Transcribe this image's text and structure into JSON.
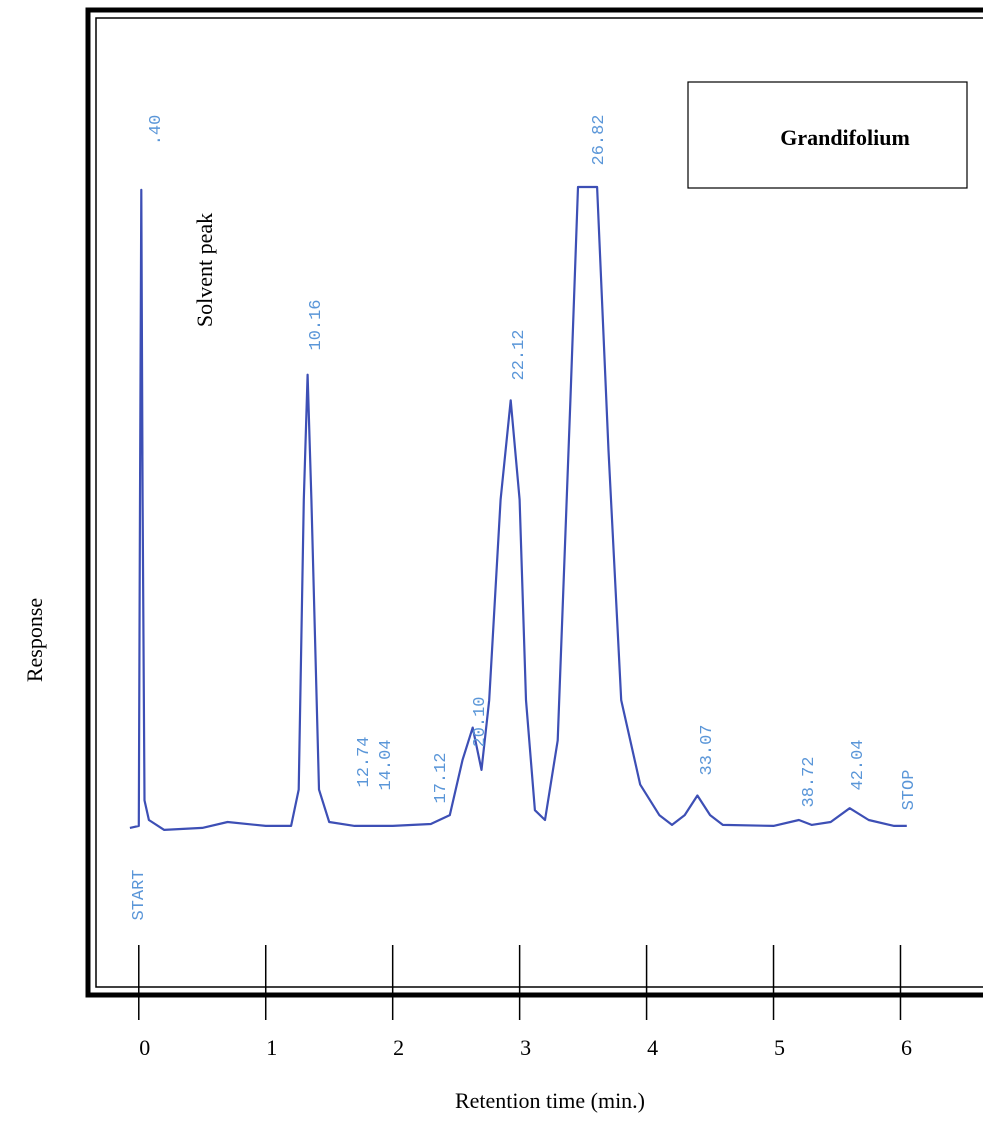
{
  "chart_data": {
    "type": "line",
    "title": "Grandifolium",
    "annotation": "Solvent peak",
    "xlabel": "Retention time (min.)",
    "ylabel": "Response",
    "peak_labels": [
      "START",
      ".40",
      "10.16",
      "12.74",
      "14.04",
      "17.12",
      "20.10",
      "22.12",
      "26.82",
      "33.07",
      "38.72",
      "42.04",
      "STOP"
    ],
    "xlim": [
      -0.4,
      6.65
    ],
    "xticks": [
      0,
      1,
      2,
      3,
      4,
      5,
      6
    ],
    "ylim": [
      0,
      100
    ],
    "x": [
      -0.07,
      0.0,
      0.01,
      0.02,
      0.03,
      0.045,
      0.08,
      0.2,
      0.5,
      0.7,
      1.0,
      1.2,
      1.26,
      1.3,
      1.33,
      1.36,
      1.42,
      1.5,
      1.7,
      2.0,
      2.3,
      2.45,
      2.55,
      2.63,
      2.7,
      2.76,
      2.85,
      2.93,
      3.0,
      3.05,
      3.12,
      3.2,
      3.3,
      3.4,
      3.46,
      3.61,
      3.7,
      3.8,
      3.95,
      4.1,
      4.2,
      4.3,
      4.4,
      4.5,
      4.6,
      5.0,
      5.2,
      5.3,
      5.45,
      5.6,
      5.75,
      5.95,
      6.05
    ],
    "series": [
      {
        "color": "#3d4fb5",
        "values": [
          17.0,
          17.2,
          50.4,
          81.9,
          50.4,
          19.8,
          17.8,
          16.8,
          17.0,
          17.6,
          17.2,
          17.2,
          20.9,
          50.4,
          63.1,
          50.4,
          20.9,
          17.6,
          17.2,
          17.2,
          17.4,
          18.3,
          23.9,
          27.2,
          22.9,
          30.0,
          50.4,
          60.5,
          50.4,
          30.0,
          18.8,
          17.8,
          25.9,
          60.5,
          82.2,
          82.2,
          55.4,
          30.0,
          21.4,
          18.3,
          17.3,
          18.3,
          20.3,
          18.3,
          17.3,
          17.2,
          17.8,
          17.3,
          17.6,
          19.0,
          17.8,
          17.2,
          17.2
        ]
      }
    ]
  }
}
